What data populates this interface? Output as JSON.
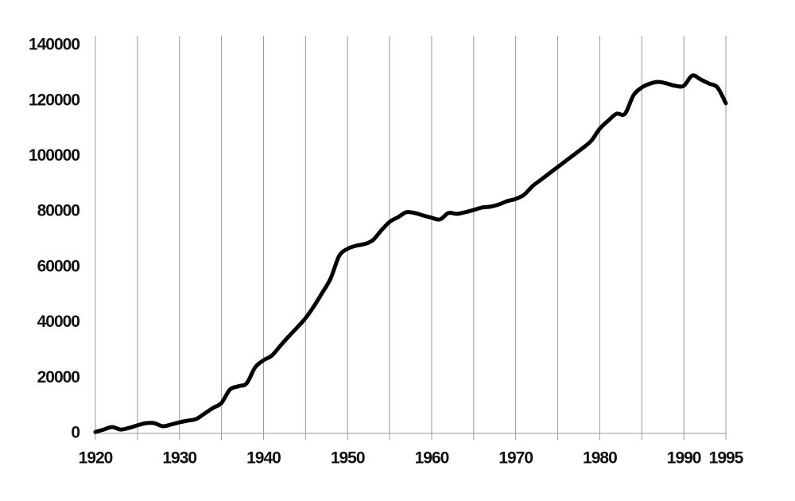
{
  "chart_data": {
    "type": "line",
    "x": [
      1920,
      1921,
      1922,
      1923,
      1924,
      1925,
      1926,
      1927,
      1928,
      1929,
      1930,
      1931,
      1932,
      1933,
      1934,
      1935,
      1936,
      1937,
      1938,
      1939,
      1940,
      1941,
      1942,
      1943,
      1944,
      1945,
      1946,
      1947,
      1948,
      1949,
      1950,
      1951,
      1952,
      1953,
      1954,
      1955,
      1956,
      1957,
      1958,
      1959,
      1960,
      1961,
      1962,
      1963,
      1964,
      1965,
      1966,
      1967,
      1968,
      1969,
      1970,
      1971,
      1972,
      1973,
      1974,
      1975,
      1976,
      1977,
      1978,
      1979,
      1980,
      1981,
      1982,
      1983,
      1984,
      1985,
      1986,
      1987,
      1988,
      1989,
      1990,
      1991,
      1992,
      1993,
      1994,
      1995
    ],
    "values": [
      500,
      1400,
      2300,
      1400,
      2000,
      2900,
      3700,
      3700,
      2600,
      3200,
      4000,
      4600,
      5200,
      7200,
      9200,
      11000,
      15800,
      17000,
      18100,
      23800,
      26400,
      28100,
      31600,
      35000,
      38200,
      41600,
      45900,
      50800,
      56000,
      64000,
      66600,
      67700,
      68300,
      69700,
      73200,
      76300,
      78000,
      79800,
      79500,
      78600,
      77800,
      77200,
      79500,
      79200,
      79800,
      80600,
      81500,
      81800,
      82600,
      83800,
      84600,
      86100,
      89200,
      91500,
      93800,
      96100,
      98400,
      100700,
      103000,
      105600,
      109900,
      112800,
      115300,
      115300,
      121900,
      124800,
      126200,
      126800,
      126200,
      125400,
      125400,
      129100,
      127700,
      126200,
      124800,
      119100
    ],
    "color": "#000000",
    "xlim": [
      1920,
      1995
    ],
    "xticks": [
      1920,
      {
        "value": 1925,
        "label": null
      },
      1930,
      {
        "value": 1935,
        "label": null
      },
      1940,
      {
        "value": 1945,
        "label": null
      },
      1950,
      {
        "value": 1955,
        "label": null
      },
      1960,
      {
        "value": 1965,
        "label": null
      },
      1970,
      {
        "value": 1975,
        "label": null
      },
      1980,
      {
        "value": 1985,
        "label": null
      },
      1990,
      1995
    ],
    "ylim": [
      0,
      140000
    ],
    "yticks": [
      0,
      20000,
      40000,
      60000,
      80000,
      100000,
      120000,
      140000
    ],
    "grid": true
  }
}
